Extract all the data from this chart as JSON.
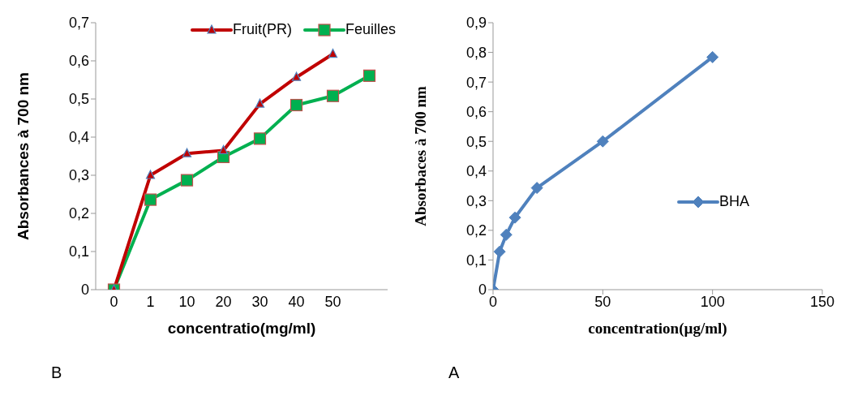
{
  "chart_data": [
    {
      "type": "line",
      "categories": [
        "0",
        "1",
        "10",
        "20",
        "30",
        "40",
        "50",
        null
      ],
      "xlabel": "concentratio(mg/ml)",
      "ylabel": "Absorbances à 700 nm",
      "ylim": [
        0,
        0.7
      ],
      "yticks": [
        0,
        {
          "value": 0.1,
          "label": "0,1"
        },
        {
          "value": 0.2,
          "label": "0,2"
        },
        {
          "value": 0.3,
          "label": "0,3"
        },
        {
          "value": 0.4,
          "label": "0,4"
        },
        {
          "value": 0.5,
          "label": "0,5"
        },
        {
          "value": 0.6,
          "label": "0,6"
        },
        {
          "value": 0.7,
          "label": "0,7"
        }
      ],
      "grid": false,
      "legend": "top right",
      "annotations": [
        "B"
      ],
      "series": [
        {
          "name": "Fruit(PR)",
          "color": "#c00000",
          "marker": "triangle",
          "values": [
            0,
            0.3,
            0.357,
            0.365,
            0.487,
            0.557,
            0.618,
            null
          ]
        },
        {
          "name": "Feuilles",
          "color": "#00b050",
          "marker": "square",
          "values": [
            0,
            0.236,
            0.287,
            0.348,
            0.396,
            0.484,
            0.508,
            0.561
          ]
        }
      ]
    },
    {
      "type": "line",
      "xlabel": "concentration(µg/ml)",
      "ylabel": "Absorbaces à 700 nm",
      "xlim": [
        0,
        150
      ],
      "xticks": [
        0,
        50,
        100,
        150
      ],
      "ylim": [
        0,
        0.9
      ],
      "yticks": [
        0,
        {
          "value": 0.1,
          "label": "0,1"
        },
        {
          "value": 0.2,
          "label": "0,2"
        },
        {
          "value": 0.3,
          "label": "0,3"
        },
        {
          "value": 0.4,
          "label": "0,4"
        },
        {
          "value": 0.5,
          "label": "0,5"
        },
        {
          "value": 0.6,
          "label": "0,6"
        },
        {
          "value": 0.7,
          "label": "0,7"
        },
        {
          "value": 0.8,
          "label": "0,8"
        },
        {
          "value": 0.9,
          "label": "0,9"
        }
      ],
      "grid": false,
      "legend": "right",
      "annotations": [
        "A"
      ],
      "series": [
        {
          "name": "BHA",
          "color": "#4f81bd",
          "marker": "diamond",
          "x": [
            0,
            3,
            6,
            10,
            20,
            50,
            100
          ],
          "values": [
            0,
            0.128,
            0.185,
            0.243,
            0.343,
            0.5,
            0.784
          ]
        }
      ]
    }
  ]
}
